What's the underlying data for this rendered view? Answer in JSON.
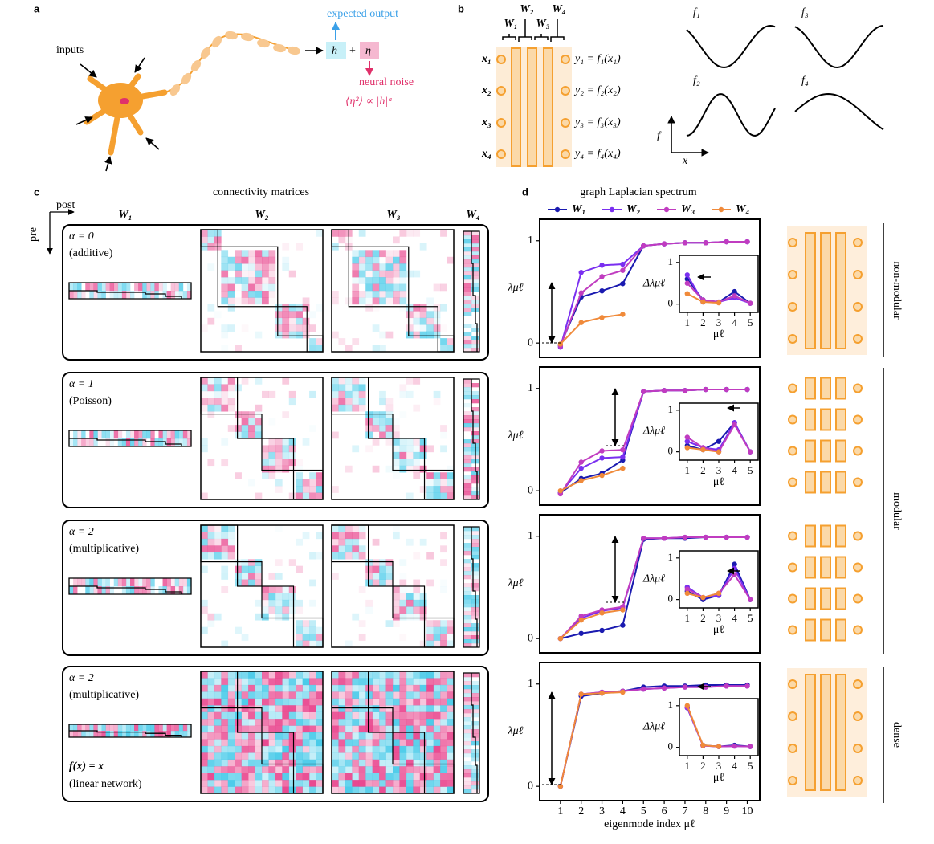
{
  "panel_labels": [
    "a",
    "b",
    "c",
    "d"
  ],
  "panel_a": {
    "inputs": "inputs",
    "expected_output": "expected output",
    "h": "h",
    "plus": "+",
    "eta": "η",
    "neural_noise": "neural noise",
    "noise_law": "⟨η²⟩ ∝ |h|ᵅ"
  },
  "panel_b": {
    "weights": [
      "W₁",
      "W₂",
      "W₃",
      "W₄"
    ],
    "inputs": [
      "x₁",
      "x₂",
      "x₃",
      "x₄"
    ],
    "outputs": [
      "y₁ = f₁(x₁)",
      "y₂ = f₂(x₂)",
      "y₃ = f₃(x₃)",
      "y₄ = f₄(x₄)"
    ],
    "functions": [
      "f₁",
      "f₂",
      "f₃",
      "f₄"
    ],
    "axis_y": "f",
    "axis_x": "x"
  },
  "panel_c": {
    "title": "connectivity matrices",
    "post": "post",
    "pre": "pre",
    "columns": [
      "W₁",
      "W₂",
      "W₃",
      "W₄"
    ],
    "rows": [
      {
        "alpha": "α = 0",
        "noise": "(additive)"
      },
      {
        "alpha": "α = 1",
        "noise": "(Poisson)"
      },
      {
        "alpha": "α = 2",
        "noise": "(multiplicative)"
      },
      {
        "alpha": "α = 2",
        "noise": "(multiplicative)",
        "function": "f(x) = x",
        "network": "(linear network)"
      }
    ]
  },
  "panel_d": {
    "regimes": [
      "non-modular",
      "modular",
      "dense"
    ]
  },
  "chart_data": [
    {
      "type": "line",
      "title": "graph Laplacian spectrum",
      "ylabel": "λμℓ",
      "x": [
        1,
        2,
        3,
        4,
        5,
        6,
        7,
        8,
        9,
        10
      ],
      "xlim": [
        0,
        10.6
      ],
      "ylim": [
        -0.14,
        1.21
      ],
      "yticks": [
        0,
        1
      ],
      "series": [
        {
          "name": "W₁",
          "color": "#1a1ab0",
          "values": [
            -0.02,
            0.45,
            0.51,
            0.58,
            0.95,
            0.97,
            0.98,
            0.98,
            0.99,
            0.99
          ]
        },
        {
          "name": "W₂",
          "color": "#7a2ff0",
          "values": [
            -0.04,
            0.69,
            0.76,
            0.77,
            0.95,
            0.97,
            0.98,
            0.98,
            0.99,
            0.99
          ]
        },
        {
          "name": "W₃",
          "color": "#c03cc0",
          "values": [
            -0.03,
            0.49,
            0.65,
            0.71,
            0.95,
            0.97,
            0.98,
            0.98,
            0.99,
            0.99
          ]
        },
        {
          "name": "W₄",
          "color": "#f08a3a",
          "values": [
            -0.01,
            0.2,
            0.25,
            0.28,
            null,
            null,
            null,
            null,
            null,
            null
          ]
        }
      ]
    },
    {
      "type": "line",
      "ylabel": "Δλμℓ",
      "xlabel": "μℓ",
      "x": [
        1,
        2,
        3,
        4,
        5
      ],
      "xlim": [
        0.5,
        5.5
      ],
      "ylim": [
        -0.2,
        1.17
      ],
      "xticks": [
        1,
        2,
        3,
        4,
        5
      ],
      "yticks": [
        0,
        1
      ],
      "series": [
        {
          "color": "#1a1ab0",
          "values": [
            0.6,
            0.1,
            0.05,
            0.3,
            0.02
          ]
        },
        {
          "color": "#7a2ff0",
          "values": [
            0.7,
            0.05,
            0.05,
            0.15,
            0.02
          ]
        },
        {
          "color": "#c03cc0",
          "values": [
            0.5,
            0.1,
            0.05,
            0.2,
            0.02
          ]
        },
        {
          "color": "#f08a3a",
          "values": [
            0.25,
            0.05,
            0.03,
            null,
            null
          ]
        }
      ]
    },
    {
      "type": "line",
      "ylabel": "λμℓ",
      "x": [
        1,
        2,
        3,
        4,
        5,
        6,
        7,
        8,
        9,
        10
      ],
      "xlim": [
        0,
        10.6
      ],
      "ylim": [
        -0.14,
        1.21
      ],
      "yticks": [
        0,
        1
      ],
      "series": [
        {
          "color": "#1a1ab0",
          "values": [
            -0.02,
            0.12,
            0.17,
            0.3,
            0.97,
            0.98,
            0.98,
            0.99,
            0.99,
            0.99
          ]
        },
        {
          "color": "#7a2ff0",
          "values": [
            -0.02,
            0.22,
            0.32,
            0.33,
            0.97,
            0.98,
            0.98,
            0.99,
            0.99,
            0.99
          ]
        },
        {
          "color": "#c03cc0",
          "values": [
            -0.03,
            0.28,
            0.39,
            0.4,
            0.97,
            0.98,
            0.98,
            0.99,
            0.99,
            0.99
          ]
        },
        {
          "color": "#f08a3a",
          "values": [
            0.0,
            0.1,
            0.15,
            0.22,
            null,
            null,
            null,
            null,
            null,
            null
          ]
        }
      ]
    },
    {
      "type": "line",
      "ylabel": "Δλμℓ",
      "xlabel": "μℓ",
      "x": [
        1,
        2,
        3,
        4,
        5
      ],
      "xlim": [
        0.5,
        5.5
      ],
      "ylim": [
        -0.2,
        1.17
      ],
      "xticks": [
        1,
        2,
        3,
        4,
        5
      ],
      "yticks": [
        0,
        1
      ],
      "series": [
        {
          "color": "#1a1ab0",
          "values": [
            0.15,
            0.05,
            0.25,
            0.7,
            0.0
          ]
        },
        {
          "color": "#7a2ff0",
          "values": [
            0.25,
            0.1,
            0.05,
            0.7,
            0.0
          ]
        },
        {
          "color": "#c03cc0",
          "values": [
            0.35,
            0.1,
            0.0,
            0.65,
            0.0
          ]
        },
        {
          "color": "#f08a3a",
          "values": [
            0.1,
            0.05,
            0.0,
            null,
            null
          ]
        }
      ]
    },
    {
      "type": "line",
      "ylabel": "λμℓ",
      "x": [
        1,
        2,
        3,
        4,
        5,
        6,
        7,
        8,
        9,
        10
      ],
      "xlim": [
        0,
        10.6
      ],
      "ylim": [
        -0.14,
        1.21
      ],
      "yticks": [
        0,
        1
      ],
      "series": [
        {
          "color": "#1a1ab0",
          "values": [
            0.0,
            0.05,
            0.08,
            0.13,
            0.97,
            0.98,
            0.98,
            0.99,
            0.99,
            0.99
          ]
        },
        {
          "color": "#7a2ff0",
          "values": [
            0.0,
            0.2,
            0.27,
            0.3,
            0.98,
            0.98,
            0.99,
            0.99,
            0.99,
            0.99
          ]
        },
        {
          "color": "#c03cc0",
          "values": [
            0.0,
            0.22,
            0.28,
            0.31,
            0.98,
            0.98,
            0.99,
            0.99,
            0.99,
            0.99
          ]
        },
        {
          "color": "#f08a3a",
          "values": [
            0.0,
            0.18,
            0.25,
            0.28,
            null,
            null,
            null,
            null,
            null,
            null
          ]
        }
      ]
    },
    {
      "type": "line",
      "ylabel": "Δλμℓ",
      "xlabel": "μℓ",
      "x": [
        1,
        2,
        3,
        4,
        5
      ],
      "xlim": [
        0.5,
        5.5
      ],
      "ylim": [
        -0.2,
        1.17
      ],
      "xticks": [
        1,
        2,
        3,
        4,
        5
      ],
      "yticks": [
        0,
        1
      ],
      "series": [
        {
          "color": "#1a1ab0",
          "values": [
            0.2,
            0.0,
            0.1,
            0.85,
            0.0
          ]
        },
        {
          "color": "#7a2ff0",
          "values": [
            0.3,
            0.05,
            0.1,
            0.75,
            0.0
          ]
        },
        {
          "color": "#c03cc0",
          "values": [
            0.25,
            0.05,
            0.15,
            0.6,
            0.0
          ]
        },
        {
          "color": "#f08a3a",
          "values": [
            0.15,
            0.05,
            0.15,
            null,
            null
          ]
        }
      ]
    },
    {
      "type": "line",
      "ylabel": "λμℓ",
      "xlabel": "eigenmode index μℓ",
      "x": [
        1,
        2,
        3,
        4,
        5,
        6,
        7,
        8,
        9,
        10
      ],
      "xlim": [
        0,
        10.6
      ],
      "ylim": [
        -0.14,
        1.21
      ],
      "xticks": [
        1,
        2,
        3,
        4,
        5,
        6,
        7,
        8,
        9,
        10
      ],
      "yticks": [
        0,
        1
      ],
      "series": [
        {
          "color": "#1a1ab0",
          "values": [
            0.0,
            0.88,
            0.91,
            0.93,
            0.97,
            0.98,
            0.98,
            0.99,
            0.99,
            0.99
          ]
        },
        {
          "color": "#7a2ff0",
          "values": [
            0.0,
            0.9,
            0.92,
            0.93,
            0.95,
            0.96,
            0.97,
            0.97,
            0.98,
            0.98
          ]
        },
        {
          "color": "#c03cc0",
          "values": [
            0.0,
            0.9,
            0.92,
            0.93,
            0.95,
            0.96,
            0.97,
            0.97,
            0.98,
            0.98
          ]
        },
        {
          "color": "#f08a3a",
          "values": [
            0.0,
            0.9,
            0.91,
            0.92,
            null,
            null,
            null,
            null,
            null,
            null
          ]
        }
      ]
    },
    {
      "type": "line",
      "ylabel": "Δλμℓ",
      "xlabel": "μℓ",
      "x": [
        1,
        2,
        3,
        4,
        5
      ],
      "xlim": [
        0.5,
        5.5
      ],
      "ylim": [
        -0.2,
        1.17
      ],
      "xticks": [
        1,
        2,
        3,
        4,
        5
      ],
      "yticks": [
        0,
        1
      ],
      "series": [
        {
          "color": "#1a1ab0",
          "values": [
            0.95,
            0.05,
            0.02,
            0.05,
            0.02
          ]
        },
        {
          "color": "#7a2ff0",
          "values": [
            0.95,
            0.04,
            0.02,
            0.03,
            0.02
          ]
        },
        {
          "color": "#c03cc0",
          "values": [
            0.97,
            0.04,
            0.02,
            0.03,
            0.02
          ]
        },
        {
          "color": "#f08a3a",
          "values": [
            1.0,
            0.05,
            0.02,
            null,
            null
          ]
        }
      ]
    }
  ]
}
